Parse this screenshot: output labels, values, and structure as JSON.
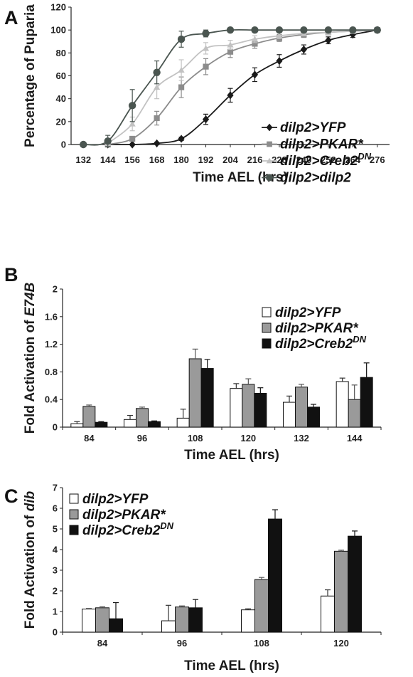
{
  "chart_data": [
    {
      "panel": "A",
      "type": "line",
      "ylabel": "Percentage of Puparia",
      "xlabel": "Time AEL (hrs)",
      "ylim": [
        0,
        120
      ],
      "yticks": [
        "0",
        "20",
        "40",
        "60",
        "80",
        "100",
        "120"
      ],
      "xlim": [
        126,
        282
      ],
      "xticks": [
        "132",
        "144",
        "156",
        "168",
        "180",
        "192",
        "204",
        "216",
        "228",
        "240",
        "252",
        "264",
        "276"
      ],
      "grid": false,
      "legend_position": "right",
      "series": [
        {
          "name": "dilp2>YFP",
          "label_main": "dilp2>YFP",
          "label_sup": "",
          "color": "#1a1a1a",
          "marker": "diamond",
          "x": [
            144,
            156,
            168,
            180,
            192,
            204,
            216,
            228,
            240,
            252,
            264,
            276
          ],
          "y": [
            0,
            0,
            1,
            5,
            22,
            43,
            61,
            73,
            83,
            91,
            96,
            100
          ],
          "err": [
            0,
            0,
            1,
            1.5,
            4.5,
            6,
            6,
            5.5,
            4,
            3,
            2.5,
            0
          ]
        },
        {
          "name": "dilp2>PKAR*",
          "label_main": "dilp2>PKAR*",
          "label_sup": "",
          "color": "#8c8c8c",
          "marker": "square",
          "x": [
            144,
            156,
            168,
            180,
            192,
            204,
            216,
            228,
            240,
            252,
            264,
            276
          ],
          "y": [
            0,
            5,
            23,
            50,
            68,
            81,
            88,
            93,
            96,
            98,
            99,
            100
          ],
          "err": [
            0,
            2,
            6,
            9,
            7,
            5,
            4,
            3,
            2.5,
            2,
            1,
            0
          ]
        },
        {
          "name": "dilp2>Creb2DN",
          "label_main": "dilp2>Creb2",
          "label_sup": "DN",
          "color": "#c2c2c2",
          "marker": "triangle",
          "x": [
            144,
            156,
            168,
            180,
            192,
            204,
            216,
            228,
            240,
            252,
            264,
            276
          ],
          "y": [
            1,
            18,
            50,
            65,
            84,
            87,
            92,
            95,
            97,
            98,
            99,
            100
          ],
          "err": [
            1,
            6,
            10,
            9,
            5,
            4,
            3,
            2.5,
            2,
            1.5,
            1,
            0
          ]
        },
        {
          "name": "dilp2>dilp2",
          "label_main": "dilp2>dilp2",
          "label_sup": "",
          "color": "#4a5550",
          "marker": "circle",
          "x": [
            132,
            144,
            156,
            168,
            180,
            192,
            204,
            216,
            228,
            240,
            252,
            264,
            276
          ],
          "y": [
            0,
            3,
            34,
            63,
            92,
            97,
            100,
            100,
            100,
            100,
            100,
            100,
            100
          ],
          "err": [
            0,
            5,
            14,
            10,
            7,
            3,
            0.5,
            0,
            0,
            0,
            0,
            0,
            0
          ]
        }
      ]
    },
    {
      "panel": "B",
      "type": "bar",
      "ylabel_prefix": "Fold Activation of ",
      "ylabel_gene": "E74B",
      "xlabel": "Time AEL (hrs)",
      "ylim": [
        0,
        2
      ],
      "yticks": [
        "0",
        "0.4",
        "0.8",
        "1.2",
        "1.6",
        "2"
      ],
      "categories": [
        "84",
        "96",
        "108",
        "120",
        "132",
        "144"
      ],
      "grid": false,
      "legend_position": "top-right",
      "series": [
        {
          "name": "dilp2>YFP",
          "label_main": "dilp2>YFP",
          "label_sup": "",
          "color": "#ffffff",
          "values": [
            0.05,
            0.11,
            0.13,
            0.56,
            0.36,
            0.66
          ],
          "err": [
            0.03,
            0.06,
            0.13,
            0.07,
            0.09,
            0.05
          ]
        },
        {
          "name": "dilp2>PKAR*",
          "label_main": "dilp2>PKAR*",
          "label_sup": "",
          "color": "#9a9a9a",
          "values": [
            0.3,
            0.27,
            0.99,
            0.62,
            0.58,
            0.4
          ],
          "err": [
            0.02,
            0.02,
            0.14,
            0.08,
            0.04,
            0.21
          ]
        },
        {
          "name": "dilp2>Creb2DN",
          "label_main": "dilp2>Creb2",
          "label_sup": "DN",
          "color": "#111111",
          "values": [
            0.07,
            0.08,
            0.85,
            0.49,
            0.29,
            0.72
          ],
          "err": [
            0.01,
            0.01,
            0.13,
            0.08,
            0.04,
            0.21
          ]
        }
      ]
    },
    {
      "panel": "C",
      "type": "bar",
      "ylabel_prefix": "Fold Activation of ",
      "ylabel_gene": "dib",
      "xlabel": "Time AEL (hrs)",
      "ylim": [
        0,
        7
      ],
      "yticks": [
        "0",
        "1",
        "2",
        "3",
        "4",
        "5",
        "6",
        "7"
      ],
      "categories": [
        "84",
        "96",
        "108",
        "120"
      ],
      "grid": false,
      "legend_position": "top-left",
      "series": [
        {
          "name": "dilp2>YFP",
          "label_main": "dilp2>YFP",
          "label_sup": "",
          "color": "#ffffff",
          "values": [
            1.12,
            0.55,
            1.08,
            1.75
          ],
          "err": [
            0.02,
            0.75,
            0.05,
            0.3
          ]
        },
        {
          "name": "dilp2>PKAR*",
          "label_main": "dilp2>PKAR*",
          "label_sup": "",
          "color": "#9a9a9a",
          "values": [
            1.18,
            1.22,
            2.55,
            3.92
          ],
          "err": [
            0.05,
            0.05,
            0.1,
            0.05
          ]
        },
        {
          "name": "dilp2>Creb2DN",
          "label_main": "dilp2>Creb2",
          "label_sup": "DN",
          "color": "#111111",
          "values": [
            0.65,
            1.18,
            5.48,
            4.65
          ],
          "err": [
            0.78,
            0.4,
            0.45,
            0.25
          ]
        }
      ]
    }
  ]
}
